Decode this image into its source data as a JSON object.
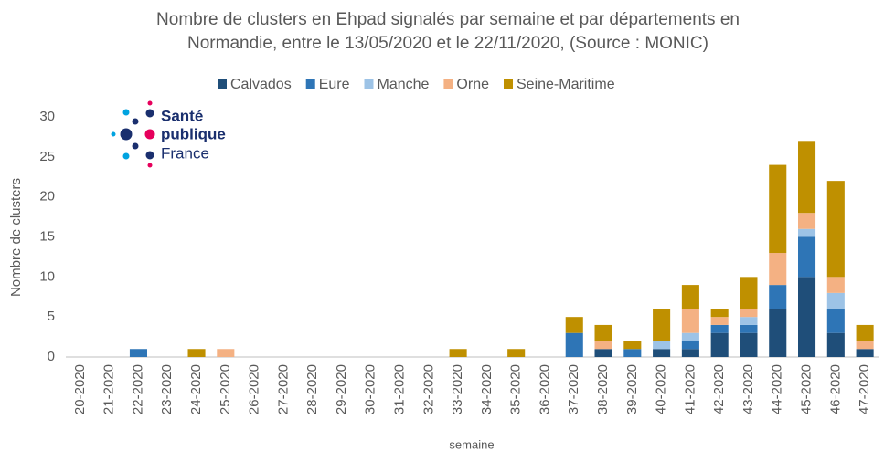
{
  "chart_data": {
    "type": "bar",
    "stacked": true,
    "title": [
      "Nombre de clusters en Ehpad signalés par semaine et par départements en",
      "Normandie, entre le 13/05/2020 et le 22/11/2020, (Source : MONIC)"
    ],
    "xlabel": "semaine",
    "ylabel": "Nombre de clusters",
    "logo": [
      "Santé",
      "publique",
      "France"
    ],
    "categories": [
      "20-2020",
      "21-2020",
      "22-2020",
      "23-2020",
      "24-2020",
      "25-2020",
      "26-2020",
      "27-2020",
      "28-2020",
      "29-2020",
      "30-2020",
      "31-2020",
      "32-2020",
      "33-2020",
      "34-2020",
      "35-2020",
      "36-2020",
      "37-2020",
      "38-2020",
      "39-2020",
      "40-2020",
      "41-2020",
      "42-2020",
      "43-2020",
      "44-2020",
      "45-2020",
      "46-2020",
      "47-2020"
    ],
    "series": [
      {
        "name": "Calvados",
        "color": "#1f4e79",
        "values": [
          0,
          0,
          0,
          0,
          0,
          0,
          0,
          0,
          0,
          0,
          0,
          0,
          0,
          0,
          0,
          0,
          0,
          0,
          1,
          0,
          1,
          1,
          3,
          3,
          6,
          10,
          3,
          1
        ]
      },
      {
        "name": "Eure",
        "color": "#2e75b6",
        "values": [
          0,
          0,
          1,
          0,
          0,
          0,
          0,
          0,
          0,
          0,
          0,
          0,
          0,
          0,
          0,
          0,
          0,
          3,
          0,
          1,
          0,
          1,
          1,
          1,
          3,
          5,
          3,
          0
        ]
      },
      {
        "name": "Manche",
        "color": "#9dc3e6",
        "values": [
          0,
          0,
          0,
          0,
          0,
          0,
          0,
          0,
          0,
          0,
          0,
          0,
          0,
          0,
          0,
          0,
          0,
          0,
          0,
          0,
          1,
          1,
          0,
          1,
          0,
          1,
          2,
          0
        ]
      },
      {
        "name": "Orne",
        "color": "#f4b183",
        "values": [
          0,
          0,
          0,
          0,
          0,
          1,
          0,
          0,
          0,
          0,
          0,
          0,
          0,
          0,
          0,
          0,
          0,
          0,
          1,
          0,
          0,
          3,
          1,
          1,
          4,
          2,
          2,
          1
        ]
      },
      {
        "name": "Seine-Maritime",
        "color": "#bf9000",
        "values": [
          0,
          0,
          0,
          0,
          1,
          0,
          0,
          0,
          0,
          0,
          0,
          0,
          0,
          1,
          0,
          1,
          0,
          2,
          2,
          1,
          4,
          3,
          1,
          4,
          11,
          9,
          12,
          2
        ]
      }
    ],
    "ylim": [
      0,
      30
    ],
    "yticks": [
      0,
      5,
      10,
      15,
      20,
      25,
      30
    ],
    "grid": false,
    "legend": "top"
  }
}
